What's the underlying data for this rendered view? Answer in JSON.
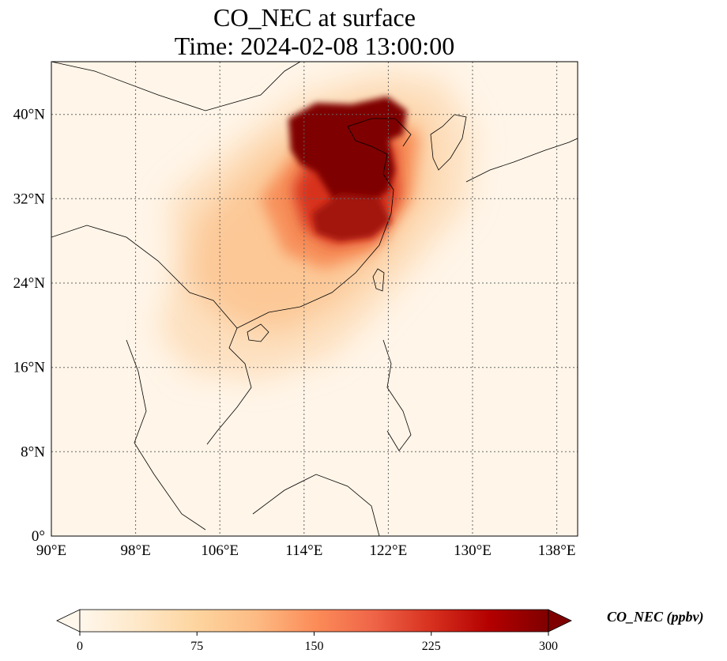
{
  "title": {
    "line1": "CO_NEC at surface",
    "line2": "Time: 2024-02-08 13:00:00"
  },
  "map": {
    "projection": "PlateCarree",
    "lon_range": [
      90,
      140
    ],
    "lat_range": [
      0,
      45
    ],
    "gridlines": true,
    "coastlines": true,
    "borders": true,
    "x_ticks": [
      {
        "value": 90,
        "label": "90°E"
      },
      {
        "value": 98,
        "label": "98°E"
      },
      {
        "value": 106,
        "label": "106°E"
      },
      {
        "value": 114,
        "label": "114°E"
      },
      {
        "value": 122,
        "label": "122°E"
      },
      {
        "value": 130,
        "label": "130°E"
      },
      {
        "value": 138,
        "label": "138°E"
      }
    ],
    "y_ticks": [
      {
        "value": 0,
        "label": "0°"
      },
      {
        "value": 8,
        "label": "8°N"
      },
      {
        "value": 16,
        "label": "16°N"
      },
      {
        "value": 24,
        "label": "24°N"
      },
      {
        "value": 32,
        "label": "32°N"
      },
      {
        "value": 40,
        "label": "40°N"
      }
    ]
  },
  "colorbar": {
    "label": "CO_NEC (ppbv)",
    "min": 0,
    "max": 300,
    "extend": "both",
    "colormap": "OrRd",
    "ticks": [
      {
        "value": 0,
        "label": "0"
      },
      {
        "value": 75,
        "label": "75"
      },
      {
        "value": 150,
        "label": "150"
      },
      {
        "value": 225,
        "label": "225"
      },
      {
        "value": 300,
        "label": "300"
      }
    ],
    "colors": [
      "#fff7ec",
      "#fee8c8",
      "#fdd49e",
      "#fdbb84",
      "#fc8d59",
      "#ef6548",
      "#d7301f",
      "#b30000",
      "#7f0000"
    ]
  },
  "field": {
    "background_color": "#fff5e8",
    "high_color": "#7f0000"
  }
}
